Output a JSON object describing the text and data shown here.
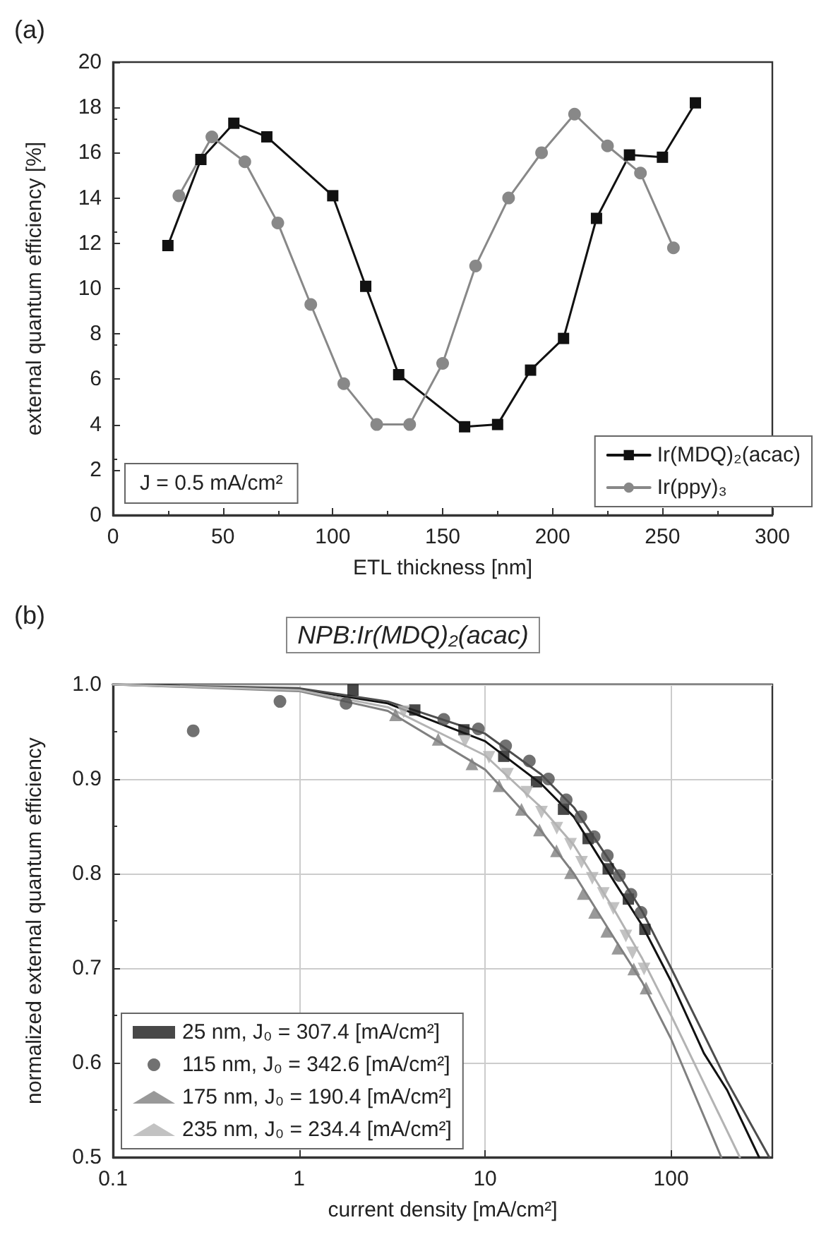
{
  "chart_data": [
    {
      "type": "line",
      "xlabel": "ETL thickness [nm]",
      "ylabel": "external quantum efficiency [%]",
      "xlim": [
        0,
        300
      ],
      "xticks": [
        0,
        50,
        100,
        150,
        200,
        250,
        300
      ],
      "ylim": [
        0,
        20
      ],
      "yticks": [
        0,
        2,
        4,
        6,
        8,
        10,
        12,
        14,
        16,
        18,
        20
      ],
      "grid": false,
      "legend": "bottom right",
      "annotations": [
        "(a)",
        "J = 0.5 mA/cm²"
      ],
      "series": [
        {
          "name": "Ir(MDQ)₂(acac)",
          "color": "#111111",
          "marker": "square",
          "x": [
            25,
            40,
            55,
            70,
            100,
            115,
            130,
            160,
            175,
            190,
            205,
            220,
            235,
            250,
            265
          ],
          "values": [
            11.9,
            15.7,
            17.3,
            16.7,
            14.1,
            10.1,
            6.2,
            3.9,
            4.0,
            6.4,
            7.8,
            13.1,
            15.9,
            15.8,
            18.2
          ]
        },
        {
          "name": "Ir(ppy)₃",
          "color": "#888888",
          "marker": "circle",
          "x": [
            30,
            45,
            60,
            75,
            90,
            105,
            120,
            135,
            150,
            165,
            180,
            195,
            210,
            225,
            240,
            255
          ],
          "values": [
            14.1,
            16.7,
            15.6,
            12.9,
            9.3,
            5.8,
            4.0,
            4.0,
            6.7,
            11.0,
            14.0,
            16.0,
            17.7,
            16.3,
            15.1,
            11.8
          ]
        }
      ]
    },
    {
      "type": "scatter",
      "title": "NPB:Ir(MDQ)₂(acac)",
      "xlabel": "current density [mA/cm²]",
      "ylabel": "normalized external quantum efficiency",
      "log": "x",
      "xlim": [
        0.1,
        350
      ],
      "xticks": [
        0.1,
        1,
        10,
        100
      ],
      "ylim": [
        0.5,
        1.0
      ],
      "yticks": [
        {
          "value": 0.5,
          "label": "0.5"
        },
        {
          "value": 0.6,
          "label": "0.6"
        },
        {
          "value": 0.7,
          "label": "0.7"
        },
        {
          "value": 0.8,
          "label": "0.8"
        },
        {
          "value": 0.9,
          "label": "0.9"
        },
        {
          "value": 1.0,
          "label": "1.0"
        }
      ],
      "grid": true,
      "legend": "bottom left",
      "annotations": [
        "(b)"
      ],
      "series": [
        {
          "type": "line",
          "marker": "none",
          "color": "#111111",
          "x": [
            0.1,
            1,
            3,
            10,
            20,
            30,
            50,
            70,
            100,
            150,
            200,
            297
          ],
          "values": [
            1.0,
            0.995,
            0.98,
            0.94,
            0.895,
            0.86,
            0.79,
            0.745,
            0.686,
            0.61,
            0.571,
            0.5
          ]
        },
        {
          "type": "line",
          "marker": "none",
          "color": "#4d4d4d",
          "x": [
            0.1,
            1,
            3,
            10,
            20,
            30,
            50,
            70,
            100,
            200,
            337
          ],
          "values": [
            1.0,
            0.996,
            0.982,
            0.948,
            0.905,
            0.87,
            0.805,
            0.76,
            0.7,
            0.58,
            0.5
          ]
        },
        {
          "type": "line",
          "marker": "none",
          "color": "#808080",
          "x": [
            0.1,
            1,
            3,
            10,
            20,
            30,
            50,
            70,
            100,
            186
          ],
          "values": [
            1.0,
            0.993,
            0.972,
            0.91,
            0.845,
            0.8,
            0.73,
            0.685,
            0.625,
            0.5
          ]
        },
        {
          "type": "line",
          "marker": "none",
          "color": "#b3b3b3",
          "x": [
            0.1,
            1,
            3,
            10,
            20,
            30,
            50,
            70,
            100,
            234
          ],
          "values": [
            1.0,
            0.994,
            0.976,
            0.925,
            0.87,
            0.83,
            0.76,
            0.71,
            0.65,
            0.5
          ]
        },
        {
          "name": "25 nm, J₀ = 307.4 [mA/cm²]",
          "color": "#1a1a1a",
          "marker": "square",
          "x": [
            1.95,
            4.19,
            7.7,
            12.6,
            18.9,
            26.4,
            35.8,
            45.9,
            58.9,
            72.3
          ],
          "values": [
            0.994,
            0.973,
            0.952,
            0.924,
            0.897,
            0.868,
            0.837,
            0.805,
            0.773,
            0.741
          ]
        },
        {
          "name": "115 nm, J₀ = 342.6 [mA/cm²]",
          "color": "#4d4d4d",
          "marker": "circle",
          "x": [
            0.27,
            0.79,
            1.79,
            6.0,
            9.2,
            12.9,
            17.3,
            21.9,
            27.3,
            32.7,
            38.6,
            45.4,
            52.7,
            60.8,
            68.9
          ],
          "values": [
            0.951,
            0.982,
            0.98,
            0.963,
            0.953,
            0.935,
            0.919,
            0.9,
            0.878,
            0.86,
            0.839,
            0.819,
            0.798,
            0.778,
            0.759
          ]
        },
        {
          "name": "175 nm, J₀ = 190.4 [mA/cm²]",
          "color": "#808080",
          "marker": "triangle",
          "x": [
            3.3,
            5.6,
            8.5,
            11.9,
            15.7,
            19.6,
            24.2,
            28.8,
            33.7,
            38.8,
            45.1,
            51.7,
            63,
            73.3
          ],
          "values": [
            0.968,
            0.942,
            0.916,
            0.893,
            0.868,
            0.846,
            0.824,
            0.801,
            0.779,
            0.759,
            0.739,
            0.721,
            0.699,
            0.679
          ]
        },
        {
          "name": "235 nm, J₀ = 234.4 [mA/cm²]",
          "color": "#b3b3b3",
          "marker": "triangle-down",
          "x": [
            3.65,
            7.8,
            10.5,
            13.2,
            16.8,
            20.1,
            24.3,
            28.8,
            33,
            37.7,
            43.2,
            48.9,
            57.1,
            62,
            71.5
          ],
          "values": [
            0.971,
            0.94,
            0.923,
            0.905,
            0.886,
            0.865,
            0.848,
            0.831,
            0.812,
            0.795,
            0.779,
            0.763,
            0.734,
            0.716,
            0.699
          ]
        }
      ]
    }
  ]
}
